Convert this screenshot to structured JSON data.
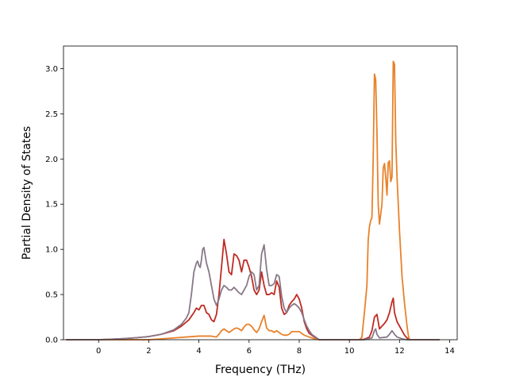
{
  "chart_data": {
    "type": "line",
    "title": "",
    "xlabel": "Frequency (THz)",
    "ylabel": "Partial Density of States",
    "xlim": [
      -1.4,
      14.3
    ],
    "ylim": [
      0,
      3.25
    ],
    "xticks": [
      0,
      2,
      4,
      6,
      8,
      10,
      12,
      14
    ],
    "xtick_labels": [
      "0",
      "2",
      "4",
      "6",
      "8",
      "10",
      "12",
      "14"
    ],
    "yticks": [
      0.0,
      0.5,
      1.0,
      1.5,
      2.0,
      2.5,
      3.0
    ],
    "ytick_labels": [
      "0.0",
      "0.5",
      "1.0",
      "1.5",
      "2.0",
      "2.5",
      "3.0"
    ],
    "grid": false,
    "legend": false,
    "series": [
      {
        "color": "#bf2b23",
        "points": [
          [
            -1.3,
            0
          ],
          [
            0,
            0
          ],
          [
            0.5,
            0.005
          ],
          [
            1.0,
            0.012
          ],
          [
            1.5,
            0.022
          ],
          [
            2.0,
            0.035
          ],
          [
            2.5,
            0.06
          ],
          [
            3.0,
            0.1
          ],
          [
            3.3,
            0.15
          ],
          [
            3.6,
            0.22
          ],
          [
            3.8,
            0.3
          ],
          [
            3.9,
            0.35
          ],
          [
            4.0,
            0.33
          ],
          [
            4.1,
            0.38
          ],
          [
            4.2,
            0.38
          ],
          [
            4.3,
            0.3
          ],
          [
            4.4,
            0.28
          ],
          [
            4.5,
            0.22
          ],
          [
            4.6,
            0.2
          ],
          [
            4.7,
            0.28
          ],
          [
            4.8,
            0.5
          ],
          [
            4.9,
            0.8
          ],
          [
            5.0,
            1.11
          ],
          [
            5.1,
            0.95
          ],
          [
            5.2,
            0.75
          ],
          [
            5.3,
            0.72
          ],
          [
            5.4,
            0.95
          ],
          [
            5.5,
            0.93
          ],
          [
            5.6,
            0.88
          ],
          [
            5.7,
            0.75
          ],
          [
            5.8,
            0.88
          ],
          [
            5.9,
            0.88
          ],
          [
            6.0,
            0.8
          ],
          [
            6.1,
            0.7
          ],
          [
            6.2,
            0.55
          ],
          [
            6.3,
            0.5
          ],
          [
            6.4,
            0.55
          ],
          [
            6.5,
            0.75
          ],
          [
            6.6,
            0.6
          ],
          [
            6.7,
            0.5
          ],
          [
            6.8,
            0.5
          ],
          [
            6.9,
            0.52
          ],
          [
            7.0,
            0.5
          ],
          [
            7.1,
            0.65
          ],
          [
            7.2,
            0.58
          ],
          [
            7.3,
            0.35
          ],
          [
            7.4,
            0.28
          ],
          [
            7.5,
            0.3
          ],
          [
            7.6,
            0.38
          ],
          [
            7.7,
            0.42
          ],
          [
            7.8,
            0.45
          ],
          [
            7.9,
            0.5
          ],
          [
            8.0,
            0.45
          ],
          [
            8.1,
            0.35
          ],
          [
            8.2,
            0.2
          ],
          [
            8.3,
            0.12
          ],
          [
            8.4,
            0.07
          ],
          [
            8.5,
            0.05
          ],
          [
            8.6,
            0.03
          ],
          [
            8.8,
            0
          ],
          [
            10.4,
            0
          ],
          [
            10.6,
            0.005
          ],
          [
            10.8,
            0.03
          ],
          [
            10.9,
            0.1
          ],
          [
            11.0,
            0.25
          ],
          [
            11.1,
            0.28
          ],
          [
            11.2,
            0.12
          ],
          [
            11.3,
            0.15
          ],
          [
            11.4,
            0.18
          ],
          [
            11.5,
            0.22
          ],
          [
            11.6,
            0.3
          ],
          [
            11.7,
            0.42
          ],
          [
            11.75,
            0.46
          ],
          [
            11.8,
            0.3
          ],
          [
            11.9,
            0.2
          ],
          [
            12.0,
            0.15
          ],
          [
            12.1,
            0.1
          ],
          [
            12.2,
            0.05
          ],
          [
            12.3,
            0.02
          ],
          [
            12.4,
            0
          ],
          [
            13.6,
            0
          ]
        ]
      },
      {
        "color": "#e8822a",
        "points": [
          [
            -1.3,
            0
          ],
          [
            2.0,
            0
          ],
          [
            2.5,
            0.01
          ],
          [
            3.0,
            0.02
          ],
          [
            3.5,
            0.03
          ],
          [
            4.0,
            0.04
          ],
          [
            4.5,
            0.04
          ],
          [
            4.7,
            0.03
          ],
          [
            4.8,
            0.06
          ],
          [
            4.9,
            0.1
          ],
          [
            5.0,
            0.12
          ],
          [
            5.1,
            0.1
          ],
          [
            5.2,
            0.08
          ],
          [
            5.3,
            0.1
          ],
          [
            5.4,
            0.12
          ],
          [
            5.5,
            0.13
          ],
          [
            5.6,
            0.12
          ],
          [
            5.7,
            0.1
          ],
          [
            5.8,
            0.14
          ],
          [
            5.9,
            0.17
          ],
          [
            6.0,
            0.17
          ],
          [
            6.1,
            0.15
          ],
          [
            6.2,
            0.11
          ],
          [
            6.3,
            0.08
          ],
          [
            6.4,
            0.12
          ],
          [
            6.5,
            0.2
          ],
          [
            6.6,
            0.27
          ],
          [
            6.7,
            0.13
          ],
          [
            6.8,
            0.1
          ],
          [
            6.9,
            0.1
          ],
          [
            7.0,
            0.08
          ],
          [
            7.1,
            0.1
          ],
          [
            7.2,
            0.08
          ],
          [
            7.3,
            0.06
          ],
          [
            7.4,
            0.05
          ],
          [
            7.5,
            0.05
          ],
          [
            7.6,
            0.06
          ],
          [
            7.7,
            0.09
          ],
          [
            7.8,
            0.09
          ],
          [
            7.9,
            0.09
          ],
          [
            8.0,
            0.09
          ],
          [
            8.1,
            0.07
          ],
          [
            8.2,
            0.05
          ],
          [
            8.4,
            0.03
          ],
          [
            8.6,
            0.01
          ],
          [
            8.8,
            0
          ],
          [
            10.4,
            0
          ],
          [
            10.5,
            0.03
          ],
          [
            10.6,
            0.3
          ],
          [
            10.7,
            0.6
          ],
          [
            10.75,
            1.1
          ],
          [
            10.8,
            1.25
          ],
          [
            10.85,
            1.32
          ],
          [
            10.9,
            1.35
          ],
          [
            10.95,
            2.0
          ],
          [
            11.0,
            2.94
          ],
          [
            11.05,
            2.88
          ],
          [
            11.1,
            2.3
          ],
          [
            11.15,
            1.5
          ],
          [
            11.2,
            1.28
          ],
          [
            11.3,
            1.5
          ],
          [
            11.35,
            1.9
          ],
          [
            11.4,
            1.95
          ],
          [
            11.45,
            1.8
          ],
          [
            11.5,
            1.6
          ],
          [
            11.55,
            1.96
          ],
          [
            11.6,
            1.98
          ],
          [
            11.65,
            1.75
          ],
          [
            11.7,
            1.8
          ],
          [
            11.75,
            3.08
          ],
          [
            11.8,
            3.05
          ],
          [
            11.85,
            2.2
          ],
          [
            11.9,
            1.8
          ],
          [
            11.95,
            1.5
          ],
          [
            12.0,
            1.2
          ],
          [
            12.05,
            0.95
          ],
          [
            12.1,
            0.7
          ],
          [
            12.2,
            0.4
          ],
          [
            12.3,
            0.15
          ],
          [
            12.35,
            0.05
          ],
          [
            12.4,
            0
          ],
          [
            13.6,
            0
          ]
        ]
      },
      {
        "color": "#887888",
        "points": [
          [
            -1.3,
            0
          ],
          [
            0,
            0
          ],
          [
            0.5,
            0.005
          ],
          [
            1.0,
            0.012
          ],
          [
            1.5,
            0.022
          ],
          [
            2.0,
            0.035
          ],
          [
            2.5,
            0.06
          ],
          [
            3.0,
            0.11
          ],
          [
            3.3,
            0.17
          ],
          [
            3.5,
            0.24
          ],
          [
            3.6,
            0.3
          ],
          [
            3.7,
            0.5
          ],
          [
            3.8,
            0.75
          ],
          [
            3.9,
            0.85
          ],
          [
            3.95,
            0.87
          ],
          [
            4.0,
            0.82
          ],
          [
            4.05,
            0.8
          ],
          [
            4.1,
            0.88
          ],
          [
            4.15,
            1.0
          ],
          [
            4.2,
            1.02
          ],
          [
            4.3,
            0.85
          ],
          [
            4.4,
            0.75
          ],
          [
            4.5,
            0.6
          ],
          [
            4.6,
            0.45
          ],
          [
            4.7,
            0.38
          ],
          [
            4.8,
            0.45
          ],
          [
            4.9,
            0.55
          ],
          [
            5.0,
            0.6
          ],
          [
            5.1,
            0.58
          ],
          [
            5.2,
            0.55
          ],
          [
            5.3,
            0.55
          ],
          [
            5.4,
            0.58
          ],
          [
            5.5,
            0.55
          ],
          [
            5.6,
            0.52
          ],
          [
            5.7,
            0.5
          ],
          [
            5.8,
            0.55
          ],
          [
            5.9,
            0.6
          ],
          [
            6.0,
            0.7
          ],
          [
            6.1,
            0.75
          ],
          [
            6.2,
            0.72
          ],
          [
            6.3,
            0.55
          ],
          [
            6.4,
            0.6
          ],
          [
            6.5,
            0.95
          ],
          [
            6.6,
            1.05
          ],
          [
            6.7,
            0.78
          ],
          [
            6.8,
            0.6
          ],
          [
            6.9,
            0.6
          ],
          [
            7.0,
            0.62
          ],
          [
            7.1,
            0.72
          ],
          [
            7.2,
            0.7
          ],
          [
            7.3,
            0.48
          ],
          [
            7.4,
            0.35
          ],
          [
            7.5,
            0.3
          ],
          [
            7.6,
            0.35
          ],
          [
            7.7,
            0.38
          ],
          [
            7.8,
            0.4
          ],
          [
            7.9,
            0.38
          ],
          [
            8.0,
            0.35
          ],
          [
            8.1,
            0.3
          ],
          [
            8.2,
            0.22
          ],
          [
            8.3,
            0.15
          ],
          [
            8.4,
            0.1
          ],
          [
            8.5,
            0.06
          ],
          [
            8.7,
            0.02
          ],
          [
            8.8,
            0
          ],
          [
            10.6,
            0
          ],
          [
            10.9,
            0.02
          ],
          [
            11.0,
            0.1
          ],
          [
            11.05,
            0.12
          ],
          [
            11.1,
            0.06
          ],
          [
            11.2,
            0.02
          ],
          [
            11.5,
            0.03
          ],
          [
            11.6,
            0.06
          ],
          [
            11.7,
            0.1
          ],
          [
            11.8,
            0.06
          ],
          [
            11.9,
            0.03
          ],
          [
            12.1,
            0.01
          ],
          [
            12.3,
            0
          ],
          [
            13.6,
            0
          ]
        ]
      }
    ]
  }
}
